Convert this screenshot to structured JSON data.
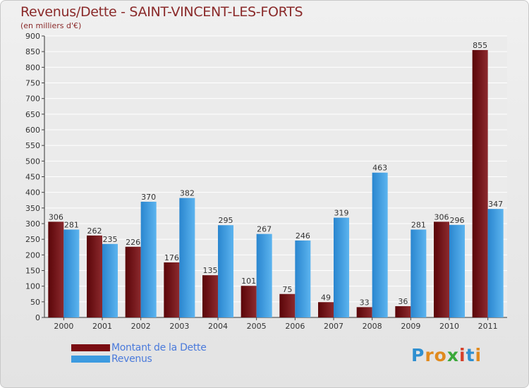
{
  "header": {
    "title": "Revenus/Dette - SAINT-VINCENT-LES-FORTS",
    "subtitle": "(en milliers d'€)"
  },
  "chart_data": {
    "type": "bar",
    "categories": [
      "2000",
      "2001",
      "2002",
      "2003",
      "2004",
      "2005",
      "2006",
      "2007",
      "2008",
      "2009",
      "2010",
      "2011"
    ],
    "series": [
      {
        "name": "Montant de la Dette",
        "color": "#7a0d12",
        "values": [
          306,
          262,
          226,
          176,
          135,
          101,
          75,
          49,
          33,
          36,
          306,
          855
        ]
      },
      {
        "name": "Revenus",
        "color": "#3d9be0",
        "values": [
          281,
          235,
          370,
          382,
          295,
          267,
          246,
          319,
          463,
          281,
          296,
          347
        ]
      }
    ],
    "ylim": [
      0,
      900
    ],
    "yticks": [
      0,
      50,
      100,
      150,
      200,
      250,
      300,
      350,
      400,
      450,
      500,
      550,
      600,
      650,
      700,
      750,
      800,
      850,
      900
    ],
    "grid": true,
    "legend": "bottom-left"
  },
  "legend": {
    "items": [
      {
        "label": "Montant de la Dette",
        "color": "#7a0d12"
      },
      {
        "label": "Revenus",
        "color": "#3d9be0"
      }
    ]
  },
  "logo": {
    "letters": [
      {
        "ch": "P",
        "color": "#2f8fd0"
      },
      {
        "ch": "r",
        "color": "#e08a1e"
      },
      {
        "ch": "o",
        "color": "#e08a1e"
      },
      {
        "ch": "x",
        "color": "#3aa83a"
      },
      {
        "ch": "i",
        "color": "#d6402a"
      },
      {
        "ch": "t",
        "color": "#2f8fd0"
      },
      {
        "ch": "i",
        "color": "#e08a1e"
      }
    ]
  }
}
